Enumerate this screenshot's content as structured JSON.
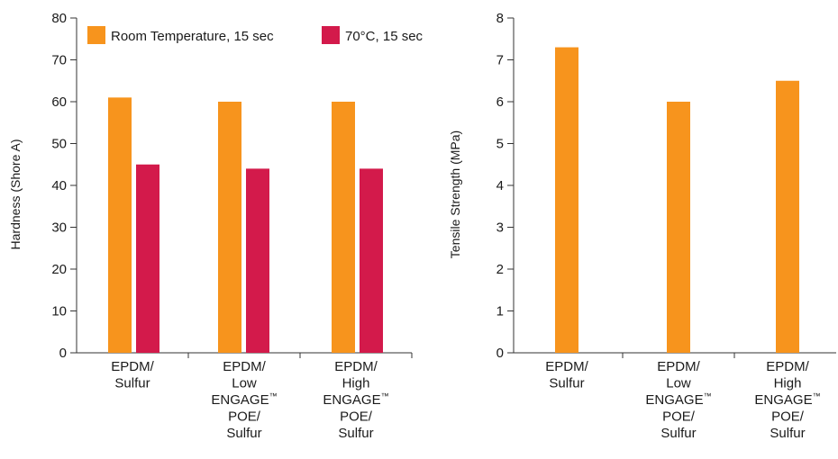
{
  "chart_data": [
    {
      "type": "bar",
      "title": "",
      "xlabel": "",
      "ylabel": "Hardness (Shore A)",
      "ylim": [
        0,
        80
      ],
      "yticks": [
        0,
        10,
        20,
        30,
        40,
        50,
        60,
        70,
        80
      ],
      "grid": false,
      "legend_position": "top",
      "categories": [
        [
          "EPDM/",
          "Sulfur"
        ],
        [
          "EPDM/",
          "Low",
          "ENGAGE™",
          "POE/",
          "Sulfur"
        ],
        [
          "EPDM/",
          "High",
          "ENGAGE™",
          "POE/",
          "Sulfur"
        ]
      ],
      "series": [
        {
          "name": "Room Temperature, 15 sec",
          "color": "#F7941D",
          "values": [
            61,
            60,
            60
          ]
        },
        {
          "name": "70°C, 15 sec",
          "color": "#D31A4B",
          "values": [
            45,
            44,
            44
          ]
        }
      ]
    },
    {
      "type": "bar",
      "title": "",
      "xlabel": "",
      "ylabel": "Tensile Strength (MPa)",
      "ylim": [
        0,
        8
      ],
      "yticks": [
        0,
        1,
        2,
        3,
        4,
        5,
        6,
        7,
        8
      ],
      "grid": false,
      "categories": [
        [
          "EPDM/",
          "Sulfur"
        ],
        [
          "EPDM/",
          "Low",
          "ENGAGE™",
          "POE/",
          "Sulfur"
        ],
        [
          "EPDM/",
          "High",
          "ENGAGE™",
          "POE/",
          "Sulfur"
        ]
      ],
      "series": [
        {
          "color": "#F7941D",
          "values": [
            7.3,
            6.0,
            6.5
          ]
        }
      ]
    }
  ]
}
